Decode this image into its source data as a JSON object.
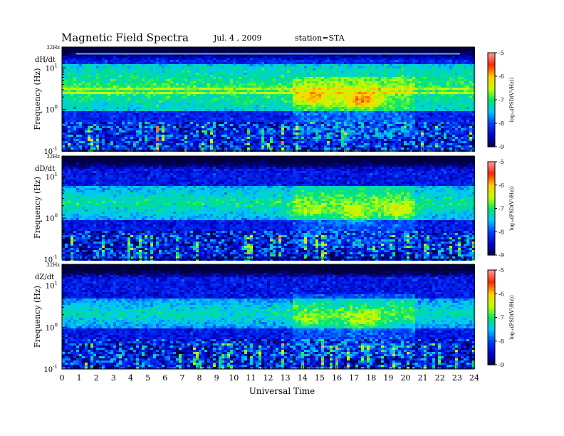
{
  "header": {
    "title": "Magnetic Field Spectra",
    "date": "Jul. 4 , 2009",
    "station": "station=STA"
  },
  "chart_data": [
    {
      "type": "heatmap",
      "panel": "dH/dt",
      "title": "",
      "xlabel": "Universal Time",
      "ylabel": "Frequency (Hz)",
      "xlim": [
        0,
        24
      ],
      "ylim_hz": [
        0.1,
        32
      ],
      "yscale": "log",
      "x_ticks": [
        "0",
        "1",
        "2",
        "3",
        "4",
        "5",
        "6",
        "7",
        "8",
        "9",
        "10",
        "11",
        "12",
        "13",
        "14",
        "15",
        "16",
        "17",
        "18",
        "19",
        "20",
        "21",
        "22",
        "23",
        "24"
      ],
      "y_ticks": [
        "10⁻¹",
        "10⁰",
        "10¹"
      ],
      "y_top_label": "32Hz",
      "colorbar": {
        "label": "log₁₀(PSD(V²/Hz))",
        "min": -9,
        "max": -5,
        "ticks": [
          "-5",
          "-6",
          "-7",
          "-8",
          "-9"
        ]
      },
      "features": {
        "background_level": -8.2,
        "band": {
          "f_low": 0.9,
          "f_high": 12,
          "level": -6.9
        },
        "harmonic_lines_hz": [
          1.3,
          1.9,
          2.5,
          3.2,
          4.3,
          5.5,
          7.0
        ],
        "active_period_ut": [
          13.5,
          20.5
        ],
        "hotspots": [
          {
            "t": 14.6,
            "f": 2.0,
            "level": -5.9
          },
          {
            "t": 17.5,
            "f": 1.7,
            "level": -5.7
          },
          {
            "t": 16.2,
            "f": 2.1,
            "level": -6.3
          }
        ],
        "top_tone_hz": 22
      }
    },
    {
      "type": "heatmap",
      "panel": "dD/dt",
      "title": "",
      "xlabel": "Universal Time",
      "ylabel": "Frequency (Hz)",
      "xlim": [
        0,
        24
      ],
      "ylim_hz": [
        0.1,
        32
      ],
      "yscale": "log",
      "x_ticks": [
        "0",
        "1",
        "2",
        "3",
        "4",
        "5",
        "6",
        "7",
        "8",
        "9",
        "10",
        "11",
        "12",
        "13",
        "14",
        "15",
        "16",
        "17",
        "18",
        "19",
        "20",
        "21",
        "22",
        "23",
        "24"
      ],
      "y_ticks": [
        "10⁻¹",
        "10⁰",
        "10¹"
      ],
      "y_top_label": "32Hz",
      "colorbar": {
        "label": "log₁₀(PSD(V²/Hz))",
        "min": -9,
        "max": -5,
        "ticks": [
          "-5",
          "-6",
          "-7",
          "-8",
          "-9"
        ]
      },
      "features": {
        "background_level": -8.3,
        "band": {
          "f_low": 0.9,
          "f_high": 6,
          "level": -7.1
        },
        "harmonic_lines_hz": [],
        "active_period_ut": [
          13.5,
          20.5
        ],
        "hotspots": [
          {
            "t": 14.3,
            "f": 1.6,
            "level": -6.5
          },
          {
            "t": 17.0,
            "f": 1.3,
            "level": -6.4
          },
          {
            "t": 19.6,
            "f": 1.6,
            "level": -6.3
          }
        ],
        "top_tone_hz": 0
      }
    },
    {
      "type": "heatmap",
      "panel": "dZ/dt",
      "title": "",
      "xlabel": "Universal Time",
      "ylabel": "Frequency (Hz)",
      "xlim": [
        0,
        24
      ],
      "ylim_hz": [
        0.1,
        32
      ],
      "yscale": "log",
      "x_ticks": [
        "0",
        "1",
        "2",
        "3",
        "4",
        "5",
        "6",
        "7",
        "8",
        "9",
        "10",
        "11",
        "12",
        "13",
        "14",
        "15",
        "16",
        "17",
        "18",
        "19",
        "20",
        "21",
        "22",
        "23",
        "24"
      ],
      "y_ticks": [
        "10⁻¹",
        "10⁰",
        "10¹"
      ],
      "y_top_label": "32Hz",
      "colorbar": {
        "label": "log₁₀(PSD(V²/Hz))",
        "min": -9,
        "max": -5,
        "ticks": [
          "-5",
          "-6",
          "-7",
          "-8",
          "-9"
        ]
      },
      "features": {
        "background_level": -8.3,
        "band": {
          "f_low": 0.9,
          "f_high": 5,
          "level": -7.2
        },
        "harmonic_lines_hz": [],
        "active_period_ut": [
          13.5,
          20.5
        ],
        "hotspots": [
          {
            "t": 14.6,
            "f": 1.6,
            "level": -6.6
          },
          {
            "t": 17.5,
            "f": 1.5,
            "level": -6.3
          }
        ],
        "top_tone_hz": 0
      }
    }
  ]
}
